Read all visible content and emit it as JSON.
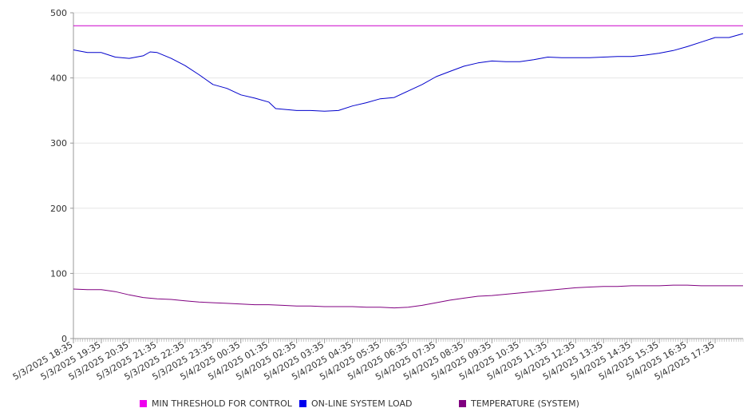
{
  "chart_data": {
    "type": "line",
    "title": "",
    "xlabel": "",
    "ylabel": "",
    "ylim": [
      0,
      500
    ],
    "yticks": [
      "0",
      "100",
      "200",
      "300",
      "400",
      "500"
    ],
    "grid": "horizontal",
    "legend_position": "bottom",
    "x_tick_labels": [
      "5/3/2025 18:35",
      "5/3/2025 19:35",
      "5/3/2025 20:35",
      "5/3/2025 21:35",
      "5/3/2025 22:35",
      "5/3/2025 23:35",
      "5/4/2025 00:35",
      "5/4/2025 01:35",
      "5/4/2025 02:35",
      "5/4/2025 03:35",
      "5/4/2025 04:35",
      "5/4/2025 05:35",
      "5/4/2025 06:35",
      "5/4/2025 07:35",
      "5/4/2025 08:35",
      "5/4/2025 09:35",
      "5/4/2025 10:35",
      "5/4/2025 11:35",
      "5/4/2025 12:35",
      "5/4/2025 13:35",
      "5/4/2025 14:35",
      "5/4/2025 15:35",
      "5/4/2025 16:35",
      "5/4/2025 17:35"
    ],
    "x_start": "5/3/2025 18:35",
    "x_end": "5/4/2025 18:35",
    "series": [
      {
        "name": "MIN THRESHOLD FOR CONTROL",
        "color": "#cc00cc",
        "points": [
          [
            "5/3/2025 18:35",
            480
          ],
          [
            "5/4/2025 18:35",
            480
          ]
        ]
      },
      {
        "name": "ON-LINE SYSTEM LOAD",
        "color": "#0000cc",
        "points": [
          [
            "5/3/2025 18:35",
            443
          ],
          [
            "5/3/2025 19:05",
            439
          ],
          [
            "5/3/2025 19:35",
            439
          ],
          [
            "5/3/2025 20:05",
            432
          ],
          [
            "5/3/2025 20:35",
            430
          ],
          [
            "5/3/2025 21:05",
            434
          ],
          [
            "5/3/2025 21:20",
            440
          ],
          [
            "5/3/2025 21:35",
            439
          ],
          [
            "5/3/2025 22:05",
            430
          ],
          [
            "5/3/2025 22:35",
            419
          ],
          [
            "5/3/2025 23:05",
            405
          ],
          [
            "5/3/2025 23:35",
            390
          ],
          [
            "5/4/2025 00:05",
            384
          ],
          [
            "5/4/2025 00:35",
            374
          ],
          [
            "5/4/2025 01:05",
            369
          ],
          [
            "5/4/2025 01:35",
            363
          ],
          [
            "5/4/2025 01:50",
            353
          ],
          [
            "5/4/2025 02:35",
            350
          ],
          [
            "5/4/2025 03:05",
            350
          ],
          [
            "5/4/2025 03:35",
            349
          ],
          [
            "5/4/2025 04:05",
            350
          ],
          [
            "5/4/2025 04:35",
            357
          ],
          [
            "5/4/2025 05:05",
            362
          ],
          [
            "5/4/2025 05:35",
            368
          ],
          [
            "5/4/2025 06:05",
            370
          ],
          [
            "5/4/2025 06:35",
            380
          ],
          [
            "5/4/2025 07:05",
            390
          ],
          [
            "5/4/2025 07:35",
            402
          ],
          [
            "5/4/2025 08:05",
            410
          ],
          [
            "5/4/2025 08:35",
            418
          ],
          [
            "5/4/2025 09:05",
            423
          ],
          [
            "5/4/2025 09:35",
            426
          ],
          [
            "5/4/2025 10:05",
            425
          ],
          [
            "5/4/2025 10:35",
            425
          ],
          [
            "5/4/2025 11:05",
            428
          ],
          [
            "5/4/2025 11:35",
            432
          ],
          [
            "5/4/2025 12:05",
            431
          ],
          [
            "5/4/2025 12:35",
            431
          ],
          [
            "5/4/2025 13:05",
            431
          ],
          [
            "5/4/2025 13:35",
            432
          ],
          [
            "5/4/2025 14:05",
            433
          ],
          [
            "5/4/2025 14:35",
            433
          ],
          [
            "5/4/2025 15:05",
            435
          ],
          [
            "5/4/2025 15:35",
            438
          ],
          [
            "5/4/2025 16:05",
            442
          ],
          [
            "5/4/2025 16:35",
            448
          ],
          [
            "5/4/2025 17:05",
            455
          ],
          [
            "5/4/2025 17:35",
            462
          ],
          [
            "5/4/2025 18:05",
            462
          ],
          [
            "5/4/2025 18:35",
            468
          ]
        ]
      },
      {
        "name": "TEMPERATURE (SYSTEM)",
        "color": "#800080",
        "points": [
          [
            "5/3/2025 18:35",
            76
          ],
          [
            "5/3/2025 19:05",
            75
          ],
          [
            "5/3/2025 19:35",
            75
          ],
          [
            "5/3/2025 20:05",
            72
          ],
          [
            "5/3/2025 20:35",
            67
          ],
          [
            "5/3/2025 21:05",
            63
          ],
          [
            "5/3/2025 21:35",
            61
          ],
          [
            "5/3/2025 22:05",
            60
          ],
          [
            "5/3/2025 22:35",
            58
          ],
          [
            "5/3/2025 23:05",
            56
          ],
          [
            "5/3/2025 23:35",
            55
          ],
          [
            "5/4/2025 00:05",
            54
          ],
          [
            "5/4/2025 00:35",
            53
          ],
          [
            "5/4/2025 01:05",
            52
          ],
          [
            "5/4/2025 01:35",
            52
          ],
          [
            "5/4/2025 02:05",
            51
          ],
          [
            "5/4/2025 02:35",
            50
          ],
          [
            "5/4/2025 03:05",
            50
          ],
          [
            "5/4/2025 03:35",
            49
          ],
          [
            "5/4/2025 04:05",
            49
          ],
          [
            "5/4/2025 04:35",
            49
          ],
          [
            "5/4/2025 05:05",
            48
          ],
          [
            "5/4/2025 05:35",
            48
          ],
          [
            "5/4/2025 06:05",
            47
          ],
          [
            "5/4/2025 06:35",
            48
          ],
          [
            "5/4/2025 07:05",
            51
          ],
          [
            "5/4/2025 07:35",
            55
          ],
          [
            "5/4/2025 08:05",
            59
          ],
          [
            "5/4/2025 08:35",
            62
          ],
          [
            "5/4/2025 09:05",
            65
          ],
          [
            "5/4/2025 09:35",
            66
          ],
          [
            "5/4/2025 10:05",
            68
          ],
          [
            "5/4/2025 10:35",
            70
          ],
          [
            "5/4/2025 11:05",
            72
          ],
          [
            "5/4/2025 11:35",
            74
          ],
          [
            "5/4/2025 12:05",
            76
          ],
          [
            "5/4/2025 12:35",
            78
          ],
          [
            "5/4/2025 13:05",
            79
          ],
          [
            "5/4/2025 13:35",
            80
          ],
          [
            "5/4/2025 14:05",
            80
          ],
          [
            "5/4/2025 14:35",
            81
          ],
          [
            "5/4/2025 15:05",
            81
          ],
          [
            "5/4/2025 15:35",
            81
          ],
          [
            "5/4/2025 16:05",
            82
          ],
          [
            "5/4/2025 16:35",
            82
          ],
          [
            "5/4/2025 17:05",
            81
          ],
          [
            "5/4/2025 17:35",
            81
          ],
          [
            "5/4/2025 18:05",
            81
          ],
          [
            "5/4/2025 18:35",
            81
          ]
        ]
      }
    ]
  },
  "legend": {
    "items": [
      {
        "label": "MIN THRESHOLD FOR CONTROL",
        "color": "#ee00ee"
      },
      {
        "label": "ON-LINE SYSTEM LOAD",
        "color": "#0000ee"
      },
      {
        "label": "TEMPERATURE (SYSTEM)",
        "color": "#800080"
      }
    ]
  }
}
